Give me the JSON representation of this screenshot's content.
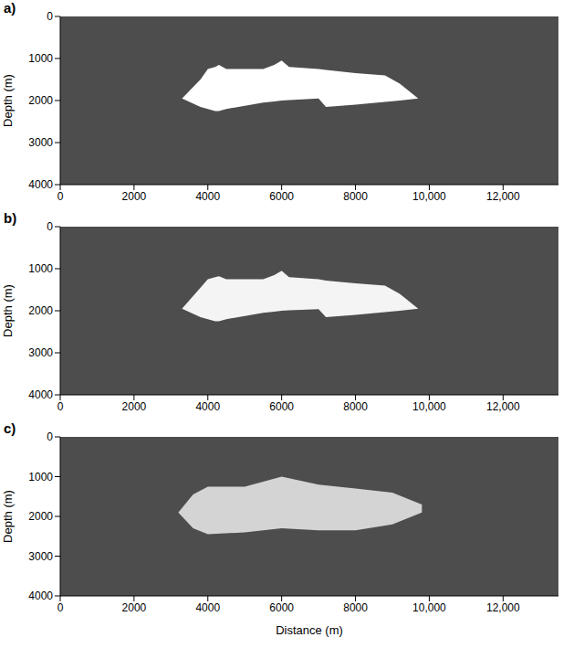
{
  "chart_data": [
    {
      "type": "area",
      "title": "a)",
      "y_label": "Depth (m)",
      "color": "#ffffff",
      "grid": false,
      "x": [
        3300,
        3800,
        4000,
        4200,
        4300,
        4500,
        5500,
        5800,
        6000,
        6200,
        7000,
        7200,
        8000,
        8800,
        9200,
        9700
      ],
      "values": [
        [
          1950,
          1950
        ],
        [
          1500,
          2150
        ],
        [
          1250,
          2200
        ],
        [
          1200,
          2250
        ],
        [
          1150,
          2250
        ],
        [
          1250,
          2200
        ],
        [
          1250,
          2050
        ],
        [
          1150,
          2020
        ],
        [
          1050,
          2000
        ],
        [
          1200,
          1990
        ],
        [
          1250,
          1950
        ],
        [
          1270,
          2150
        ],
        [
          1350,
          2100
        ],
        [
          1400,
          2030
        ],
        [
          1600,
          2000
        ],
        [
          1950,
          1950
        ]
      ],
      "xlim": [
        0,
        13500
      ],
      "xticks": [
        0,
        2000,
        4000,
        6000,
        8000,
        {
          "value": 10000,
          "label": "10,000"
        },
        {
          "value": 12000,
          "label": "12,000"
        }
      ],
      "ylim": [
        0,
        4000
      ],
      "yticks": [
        0,
        1000,
        2000,
        3000,
        4000
      ]
    },
    {
      "type": "area",
      "title": "b)",
      "y_label": "Depth (m)",
      "color": "#f4f4f4",
      "grid": false,
      "x": [
        3300,
        3800,
        4000,
        4200,
        4300,
        4500,
        5500,
        5800,
        6000,
        6200,
        7000,
        7200,
        8000,
        8800,
        9200,
        9700
      ],
      "values": [
        [
          1950,
          1950
        ],
        [
          1450,
          2150
        ],
        [
          1250,
          2200
        ],
        [
          1200,
          2250
        ],
        [
          1180,
          2250
        ],
        [
          1250,
          2200
        ],
        [
          1250,
          2050
        ],
        [
          1150,
          2020
        ],
        [
          1050,
          2000
        ],
        [
          1200,
          1990
        ],
        [
          1250,
          1960
        ],
        [
          1280,
          2150
        ],
        [
          1350,
          2100
        ],
        [
          1400,
          2030
        ],
        [
          1600,
          2000
        ],
        [
          1950,
          1950
        ]
      ],
      "xlim": [
        0,
        13500
      ],
      "xticks": [
        0,
        2000,
        4000,
        6000,
        8000,
        {
          "value": 10000,
          "label": "10,000"
        },
        {
          "value": 12000,
          "label": "12,000"
        }
      ],
      "ylim": [
        0,
        4000
      ],
      "yticks": [
        0,
        1000,
        2000,
        3000,
        4000
      ]
    },
    {
      "type": "area",
      "title": "c)",
      "y_label": "Depth (m)",
      "x_label": "Distance (m)",
      "color": "#d4d4d4",
      "grid": false,
      "x": [
        3200,
        3600,
        4000,
        5000,
        6000,
        7000,
        8000,
        9000,
        9800
      ],
      "values": [
        [
          1900,
          1900
        ],
        [
          1450,
          2300
        ],
        [
          1250,
          2450
        ],
        [
          1250,
          2400
        ],
        [
          1000,
          2300
        ],
        [
          1200,
          2350
        ],
        [
          1300,
          2350
        ],
        [
          1400,
          2200
        ],
        [
          1700,
          1900
        ]
      ],
      "xlim": [
        0,
        13500
      ],
      "xticks": [
        0,
        2000,
        4000,
        6000,
        8000,
        {
          "value": 10000,
          "label": "10,000"
        },
        {
          "value": 12000,
          "label": "12,000"
        }
      ],
      "ylim": [
        0,
        4000
      ],
      "yticks": [
        0,
        1000,
        2000,
        3000,
        4000
      ]
    }
  ]
}
